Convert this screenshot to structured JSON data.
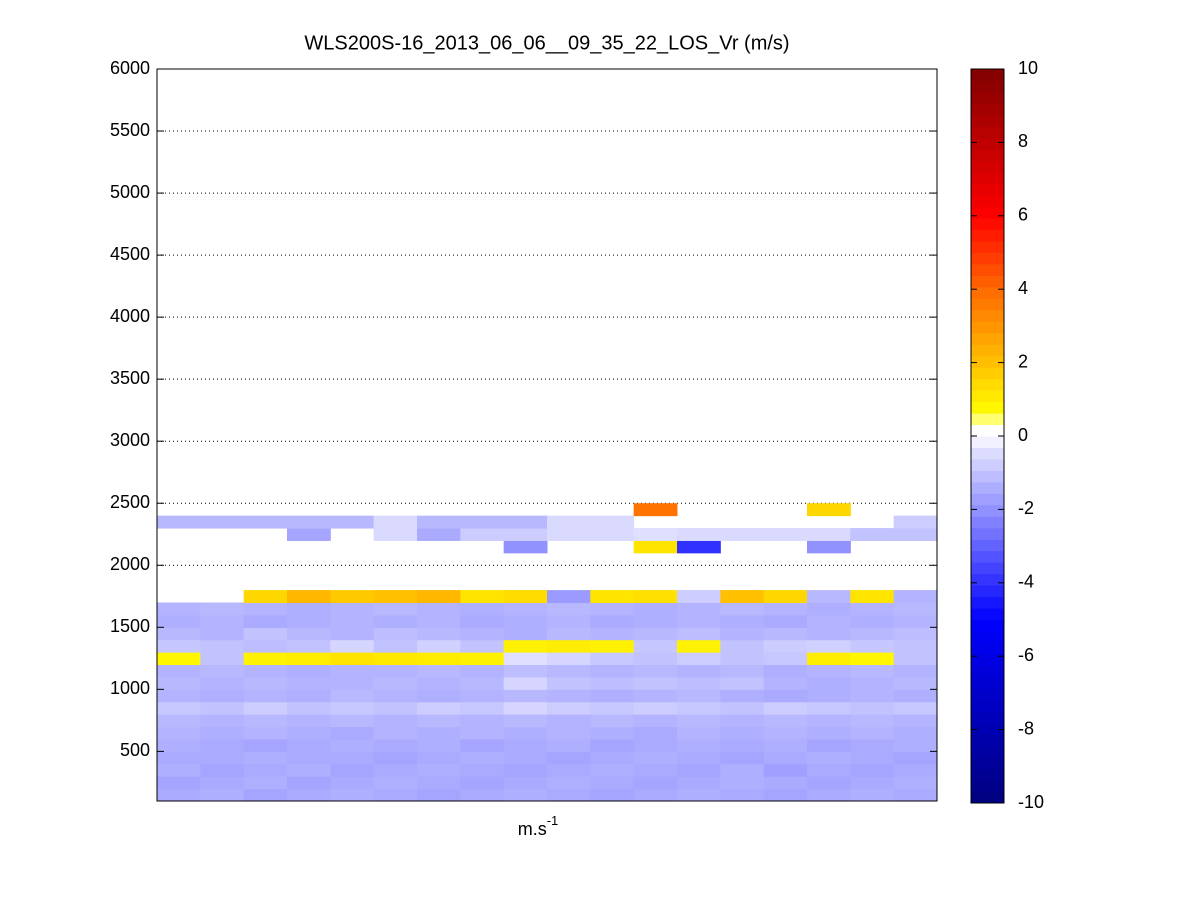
{
  "chart_data": {
    "type": "heatmap",
    "title": "WLS200S-16_2013_06_06__09_35_22_LOS_Vr (m/s)",
    "xlabel": {
      "base": "m.s",
      "superscript": "-1"
    },
    "ylim": [
      100,
      6000
    ],
    "yticks": [
      500,
      1000,
      1500,
      2000,
      2500,
      3000,
      3500,
      4000,
      4500,
      5000,
      5500,
      6000
    ],
    "grid": true,
    "y_edges": [
      100,
      200,
      300,
      400,
      500,
      600,
      700,
      800,
      900,
      1000,
      1100,
      1200,
      1300,
      1400,
      1500,
      1600,
      1700,
      1800,
      1900,
      2000,
      2100,
      2200,
      2300,
      2400,
      2500
    ],
    "z": [
      [
        -1.5,
        -1.4,
        -1.6,
        -1.5,
        -1.4,
        -1.5,
        -1.6,
        -1.5,
        -1.4,
        -1.5,
        -1.6,
        -1.5,
        -1.4,
        -1.5,
        -1.6,
        -1.5,
        -1.4,
        -1.5
      ],
      [
        -1.6,
        -1.5,
        -1.4,
        -1.6,
        -1.5,
        -1.4,
        -1.5,
        -1.6,
        -1.5,
        -1.4,
        -1.5,
        -1.6,
        -1.5,
        -1.4,
        -1.5,
        -1.6,
        -1.5,
        -1.4
      ],
      [
        -1.4,
        -1.6,
        -1.5,
        -1.4,
        -1.6,
        -1.5,
        -1.4,
        -1.5,
        -1.6,
        -1.5,
        -1.4,
        -1.5,
        -1.6,
        -1.4,
        -1.7,
        -1.5,
        -1.6,
        -1.5
      ],
      [
        -1.5,
        -1.5,
        -1.4,
        -1.5,
        -1.5,
        -1.6,
        -1.5,
        -1.4,
        -1.5,
        -1.6,
        -1.5,
        -1.4,
        -1.5,
        -1.6,
        -1.5,
        -1.4,
        -1.5,
        -1.6
      ],
      [
        -1.4,
        -1.5,
        -1.6,
        -1.5,
        -1.4,
        -1.5,
        -1.4,
        -1.6,
        -1.5,
        -1.4,
        -1.6,
        -1.5,
        -1.4,
        -1.5,
        -1.4,
        -1.6,
        -1.5,
        -1.4
      ],
      [
        -1.3,
        -1.4,
        -1.3,
        -1.4,
        -1.5,
        -1.3,
        -1.4,
        -1.3,
        -1.4,
        -1.3,
        -1.4,
        -1.5,
        -1.3,
        -1.4,
        -1.3,
        -1.4,
        -1.3,
        -1.4
      ],
      [
        -1.2,
        -1.3,
        -1.2,
        -1.3,
        -1.2,
        -1.3,
        -1.2,
        -1.3,
        -1.2,
        -1.3,
        -1.2,
        -1.3,
        -1.2,
        -1.3,
        -1.2,
        -1.3,
        -1.2,
        -1.3
      ],
      [
        -0.9,
        -1.0,
        -0.8,
        -1.0,
        -0.9,
        -1.0,
        -0.8,
        -0.9,
        -0.6,
        -0.8,
        -0.9,
        -0.8,
        -0.9,
        -1.0,
        -0.8,
        -0.9,
        -1.0,
        -0.9
      ],
      [
        -1.3,
        -1.4,
        -1.3,
        -1.4,
        -1.2,
        -1.3,
        -1.4,
        -1.3,
        -1.2,
        -1.3,
        -1.4,
        -1.3,
        -1.2,
        -1.4,
        -1.5,
        -1.4,
        -1.3,
        -1.4
      ],
      [
        -1.2,
        -1.3,
        -1.2,
        -1.3,
        -1.3,
        -1.2,
        -1.3,
        -1.2,
        -0.6,
        -1.0,
        -1.1,
        -1.0,
        -1.1,
        -1.0,
        -1.3,
        -1.4,
        -1.3,
        -1.2
      ],
      [
        -1.3,
        -1.2,
        -1.3,
        -1.4,
        -1.3,
        -1.3,
        -1.2,
        -1.3,
        -1.1,
        -1.2,
        -1.3,
        -1.2,
        -1.3,
        -1.2,
        -1.4,
        -1.3,
        -1.2,
        -1.3
      ],
      [
        0.8,
        -1.0,
        0.9,
        1.0,
        1.2,
        1.1,
        1.0,
        0.9,
        -0.4,
        -0.6,
        -0.9,
        -1.0,
        -0.8,
        -1.0,
        -0.9,
        1.0,
        0.8,
        -1.0
      ],
      [
        -0.9,
        -1.0,
        -1.1,
        -1.0,
        -0.6,
        -1.0,
        -0.7,
        -1.0,
        0.9,
        1.0,
        0.9,
        -0.9,
        0.9,
        -1.0,
        -0.8,
        -0.7,
        -0.9,
        -1.0
      ],
      [
        -1.2,
        -1.3,
        -1.0,
        -1.2,
        -1.3,
        -1.1,
        -1.2,
        -1.3,
        -1.4,
        -1.2,
        -1.3,
        -1.2,
        -1.1,
        -1.3,
        -1.2,
        -1.3,
        -1.2,
        -1.1
      ],
      [
        -1.4,
        -1.3,
        -1.5,
        -1.4,
        -1.3,
        -1.4,
        -1.3,
        -1.5,
        -1.4,
        -1.3,
        -1.5,
        -1.4,
        -1.3,
        -1.4,
        -1.5,
        -1.3,
        -1.4,
        -1.3
      ],
      [
        -1.3,
        -1.2,
        -1.3,
        -1.4,
        -1.3,
        -1.2,
        -1.3,
        -1.4,
        -1.3,
        -1.2,
        -1.3,
        -1.4,
        -1.3,
        -1.2,
        -1.3,
        -1.4,
        -1.3,
        -1.2
      ],
      [
        null,
        null,
        1.5,
        2.2,
        1.8,
        2.0,
        2.2,
        1.2,
        1.4,
        -1.8,
        1.2,
        1.3,
        -0.8,
        2.0,
        1.5,
        -1.2,
        1.2,
        -1.3
      ],
      [
        null,
        null,
        null,
        null,
        null,
        null,
        null,
        null,
        null,
        null,
        null,
        null,
        null,
        null,
        null,
        null,
        null,
        null
      ],
      [
        null,
        null,
        null,
        null,
        null,
        null,
        null,
        null,
        null,
        null,
        null,
        null,
        null,
        null,
        null,
        null,
        null,
        null
      ],
      [
        null,
        null,
        null,
        null,
        null,
        null,
        null,
        null,
        null,
        null,
        null,
        null,
        null,
        null,
        null,
        null,
        null,
        null
      ],
      [
        null,
        null,
        null,
        null,
        null,
        null,
        null,
        null,
        -2.0,
        null,
        null,
        1.2,
        -4.0,
        null,
        null,
        -2.0,
        null,
        null
      ],
      [
        null,
        null,
        null,
        -1.6,
        null,
        -0.5,
        -1.5,
        -0.8,
        -0.8,
        -0.5,
        -0.5,
        -0.4,
        -0.5,
        -0.5,
        -0.5,
        -0.5,
        -1.0,
        -1.0
      ],
      [
        -1.2,
        -1.2,
        -1.2,
        -1.2,
        -1.2,
        -0.5,
        -1.2,
        -1.2,
        -1.2,
        -0.5,
        -0.5,
        null,
        null,
        null,
        null,
        null,
        null,
        -0.8
      ],
      [
        null,
        null,
        null,
        null,
        null,
        null,
        null,
        null,
        null,
        null,
        null,
        3.8,
        null,
        null,
        null,
        1.5,
        null,
        null
      ]
    ],
    "colormap": [
      [
        -10,
        "#00007f"
      ],
      [
        -5,
        "#0000ff"
      ],
      [
        -0.3,
        "#e4e4ff"
      ],
      [
        0,
        "#ffffff"
      ],
      [
        0.3,
        "#ffffff"
      ],
      [
        0.6,
        "#ffff00"
      ],
      [
        2,
        "#ffc000"
      ],
      [
        4,
        "#ff6a00"
      ],
      [
        6,
        "#ff0000"
      ],
      [
        10,
        "#800000"
      ]
    ],
    "colorbar": {
      "lim": [
        -10,
        10
      ],
      "ticks": [
        -10,
        -8,
        -6,
        -4,
        -2,
        0,
        2,
        4,
        6,
        8,
        10
      ]
    }
  }
}
